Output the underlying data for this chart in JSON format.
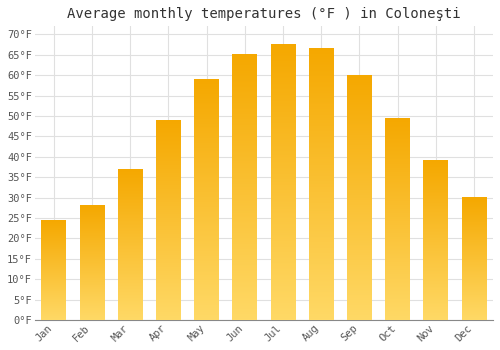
{
  "title": "Average monthly temperatures (°F ) in Coloneşti",
  "months": [
    "Jan",
    "Feb",
    "Mar",
    "Apr",
    "May",
    "Jun",
    "Jul",
    "Aug",
    "Sep",
    "Oct",
    "Nov",
    "Dec"
  ],
  "values": [
    24.5,
    28.0,
    37.0,
    49.0,
    59.0,
    65.0,
    67.5,
    66.5,
    60.0,
    49.5,
    39.0,
    30.0
  ],
  "bar_color_bottom": "#F5A800",
  "bar_color_top": "#FFD966",
  "ylim": [
    0,
    72
  ],
  "yticks": [
    0,
    5,
    10,
    15,
    20,
    25,
    30,
    35,
    40,
    45,
    50,
    55,
    60,
    65,
    70
  ],
  "background_color": "#ffffff",
  "grid_color": "#e0e0e0",
  "title_fontsize": 10,
  "tick_fontsize": 7.5,
  "bar_width": 0.65
}
